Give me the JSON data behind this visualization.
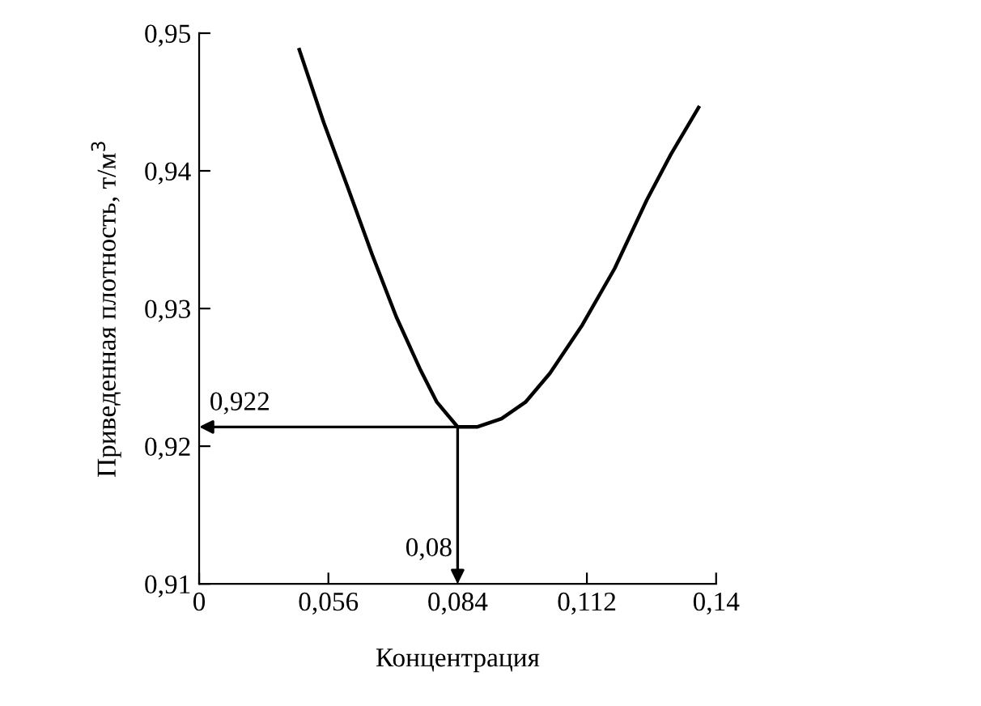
{
  "chart_data": {
    "type": "line",
    "xlabel": "Концентрация",
    "ylabel": "Приведенная плотность, т/м$^{3}$",
    "x": [
      0.0497,
      0.055,
      0.0602,
      0.0655,
      0.0707,
      0.076,
      0.0795,
      0.084,
      0.0882,
      0.0935,
      0.0987,
      0.104,
      0.111,
      0.118,
      0.125,
      0.1302,
      0.1362
    ],
    "series": [
      {
        "color": "#000000",
        "values": [
          0.9488,
          0.9435,
          0.9388,
          0.9339,
          0.9294,
          0.9255,
          0.9232,
          0.9214,
          0.9214,
          0.922,
          0.9232,
          0.9253,
          0.9288,
          0.9329,
          0.9379,
          0.9412,
          0.9446
        ]
      }
    ],
    "xlim": [
      0.028,
      0.14
    ],
    "xticks": [
      {
        "value": 0.028,
        "label": "0"
      },
      {
        "value": 0.056,
        "label": "0,056"
      },
      {
        "value": 0.084,
        "label": "0,084"
      },
      {
        "value": 0.112,
        "label": "0,112"
      },
      {
        "value": 0.14,
        "label": "0,14"
      }
    ],
    "ylim": [
      0.91,
      0.95
    ],
    "yticks": [
      {
        "value": 0.91,
        "label": "0,91"
      },
      {
        "value": 0.92,
        "label": "0,92"
      },
      {
        "value": 0.93,
        "label": "0,93"
      },
      {
        "value": 0.94,
        "label": "0,94"
      },
      {
        "value": 0.95,
        "label": "0,95"
      }
    ],
    "annotations": [
      {
        "text": "0,922",
        "x": 0.084,
        "y": 0.9214
      },
      {
        "text": "0,08",
        "x": 0.084,
        "y": 0.9214
      }
    ],
    "grid": false,
    "legend": false,
    "marker": "none",
    "line_style": "solid"
  }
}
